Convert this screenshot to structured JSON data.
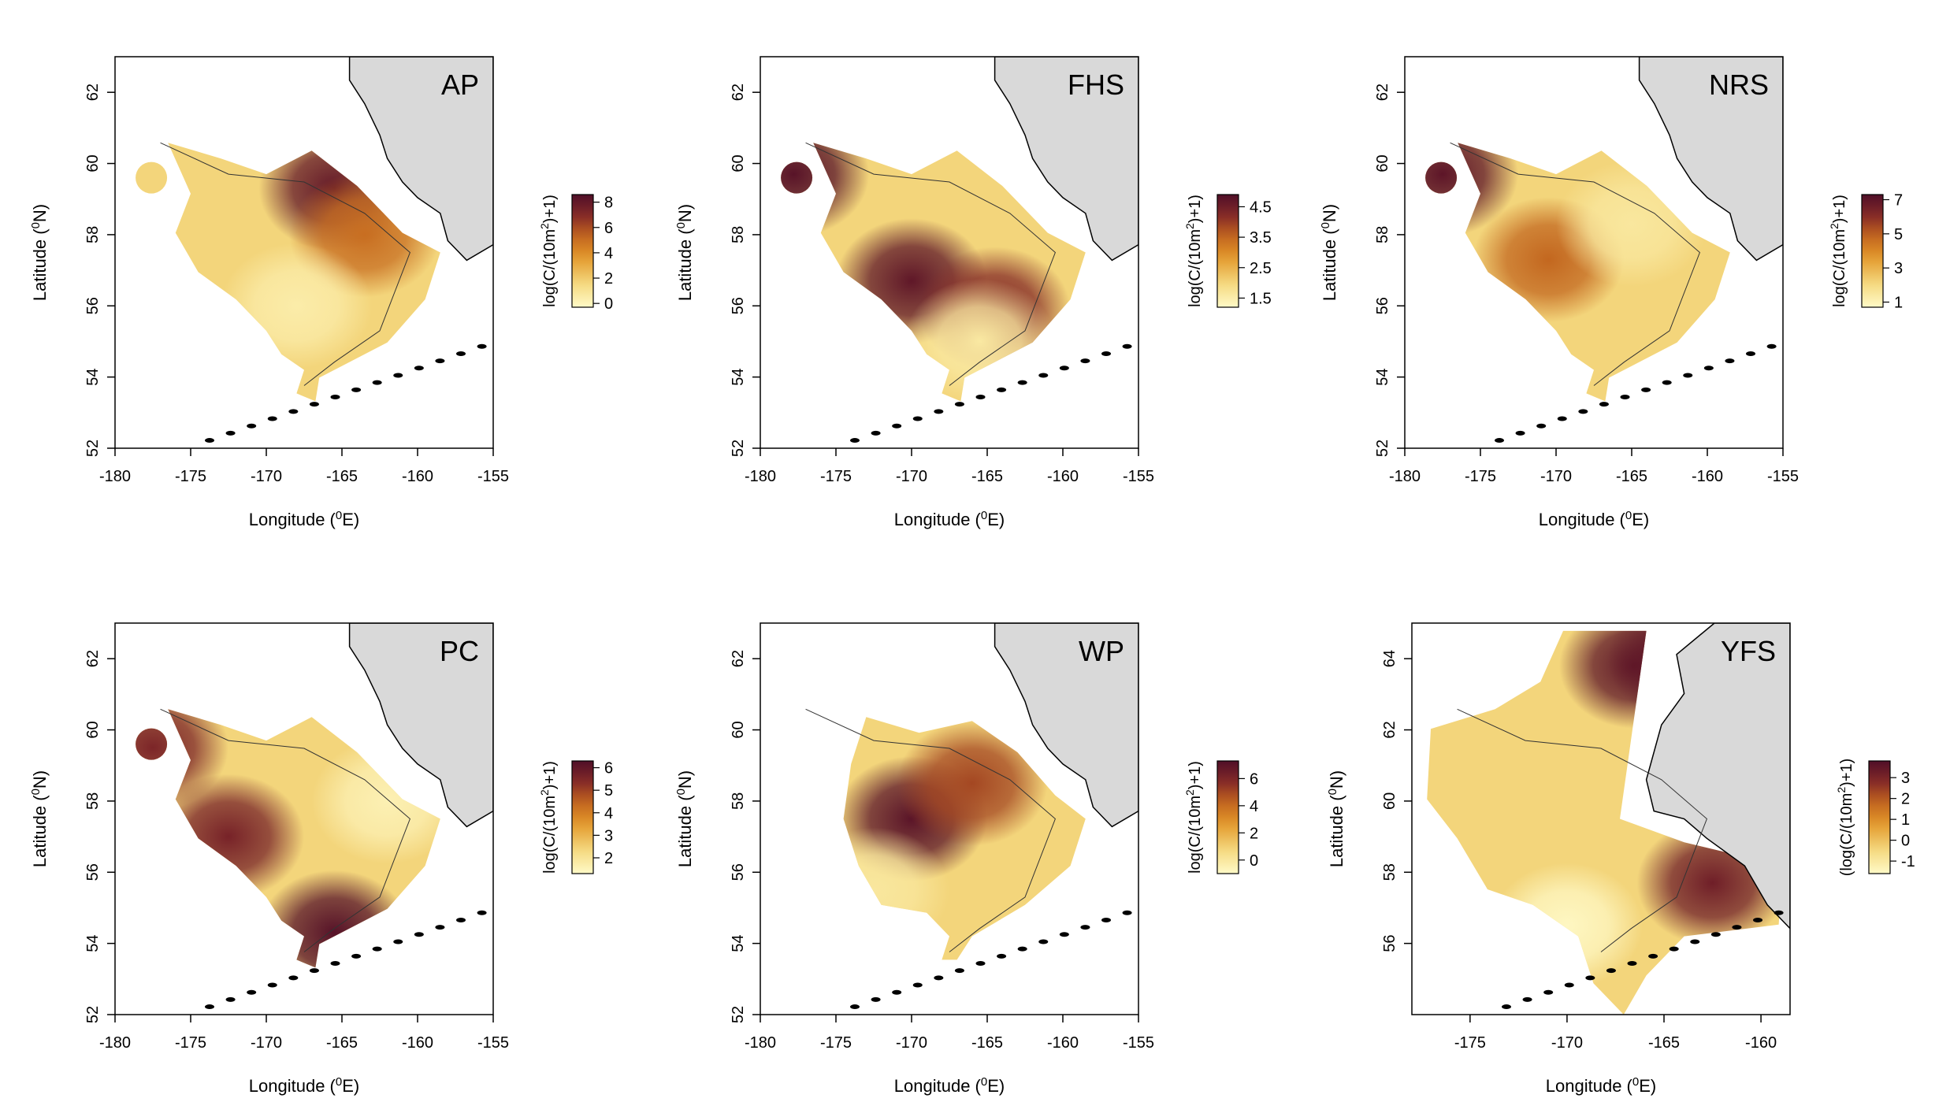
{
  "figure": {
    "panels": [
      {
        "id": "AP",
        "label": "AP",
        "xlabel": "Longitude (",
        "xlabel_sup": "0",
        "xlabel_end": "E)",
        "ylabel": "Latitude (",
        "ylabel_sup": "0",
        "ylabel_end": "N)",
        "x_ticks": [
          "-180",
          "-175",
          "-170",
          "-165",
          "-160",
          "-155"
        ],
        "y_ticks": [
          "52",
          "54",
          "56",
          "58",
          "60",
          "62"
        ],
        "legend_title": "log(C/(10m",
        "legend_title_sup": "2",
        "legend_title_end": ")+1)",
        "legend_ticks": [
          "0",
          "2",
          "4",
          "6",
          "8"
        ]
      },
      {
        "id": "FHS",
        "label": "FHS",
        "xlabel": "Longitude (",
        "xlabel_sup": "0",
        "xlabel_end": "E)",
        "ylabel": "Latitude (",
        "ylabel_sup": "0",
        "ylabel_end": "N)",
        "x_ticks": [
          "-180",
          "-175",
          "-170",
          "-165",
          "-160",
          "-155"
        ],
        "y_ticks": [
          "52",
          "54",
          "56",
          "58",
          "60",
          "62"
        ],
        "legend_title": "log(C/(10m",
        "legend_title_sup": "2",
        "legend_title_end": ")+1)",
        "legend_ticks": [
          "1.5",
          "2.5",
          "3.5",
          "4.5"
        ]
      },
      {
        "id": "NRS",
        "label": "NRS",
        "xlabel": "Longitude (",
        "xlabel_sup": "0",
        "xlabel_end": "E)",
        "ylabel": "Latitude (",
        "ylabel_sup": "0",
        "ylabel_end": "N)",
        "x_ticks": [
          "-180",
          "-175",
          "-170",
          "-165",
          "-160",
          "-155"
        ],
        "y_ticks": [
          "52",
          "54",
          "56",
          "58",
          "60",
          "62"
        ],
        "legend_title": "log(C/(10m",
        "legend_title_sup": "2",
        "legend_title_end": ")+1)",
        "legend_ticks": [
          "1",
          "3",
          "5",
          "7"
        ]
      },
      {
        "id": "PC",
        "label": "PC",
        "xlabel": "Longitude (",
        "xlabel_sup": "0",
        "xlabel_end": "E)",
        "ylabel": "Latitude (",
        "ylabel_sup": "0",
        "ylabel_end": "N)",
        "x_ticks": [
          "-180",
          "-175",
          "-170",
          "-165",
          "-160",
          "-155"
        ],
        "y_ticks": [
          "52",
          "54",
          "56",
          "58",
          "60",
          "62"
        ],
        "legend_title": "log(C/(10m",
        "legend_title_sup": "2",
        "legend_title_end": ")+1)",
        "legend_ticks": [
          "2",
          "3",
          "4",
          "5",
          "6"
        ]
      },
      {
        "id": "WP",
        "label": "WP",
        "xlabel": "Longitude (",
        "xlabel_sup": "0",
        "xlabel_end": "E)",
        "ylabel": "Latitude (",
        "ylabel_sup": "0",
        "ylabel_end": "N)",
        "x_ticks": [
          "-180",
          "-175",
          "-170",
          "-165",
          "-160",
          "-155"
        ],
        "y_ticks": [
          "52",
          "54",
          "56",
          "58",
          "60",
          "62"
        ],
        "legend_title": "log(C/(10m",
        "legend_title_sup": "2",
        "legend_title_end": ")+1)",
        "legend_ticks": [
          "0",
          "2",
          "4",
          "6"
        ]
      },
      {
        "id": "YFS",
        "label": "YFS",
        "xlabel": "Longitude (",
        "xlabel_sup": "0",
        "xlabel_end": "E)",
        "ylabel": "Latitude (",
        "ylabel_sup": "0",
        "ylabel_end": "N)",
        "x_ticks": [
          "-175",
          "-170",
          "-165",
          "-160"
        ],
        "y_ticks": [
          "56",
          "58",
          "60",
          "62",
          "64"
        ],
        "legend_title": "(log(C/(10m",
        "legend_title_sup": "2",
        "legend_title_end": ")+1)",
        "legend_ticks": [
          "-1",
          "0",
          "1",
          "2",
          "3"
        ]
      }
    ]
  },
  "chart_data": [
    {
      "type": "heatmap",
      "title": "AP",
      "xlabel": "Longitude (0E)",
      "ylabel": "Latitude (0N)",
      "xlim": [
        -180,
        -155
      ],
      "ylim": [
        52,
        63
      ],
      "colorbar": {
        "label": "log(C/(10m2)+1)",
        "range": [
          -0.3,
          8.6
        ],
        "ticks": [
          0,
          2,
          4,
          6,
          8
        ]
      },
      "hotspots": [
        {
          "lon": -165.5,
          "lat": 59.3,
          "value": 8
        },
        {
          "lon": -163.5,
          "lat": 58.0,
          "value": 5
        },
        {
          "lon": -168.0,
          "lat": 56.0,
          "value": 0.5
        }
      ]
    },
    {
      "type": "heatmap",
      "title": "FHS",
      "xlabel": "Longitude (0E)",
      "ylabel": "Latitude (0N)",
      "xlim": [
        -180,
        -155
      ],
      "ylim": [
        52,
        63
      ],
      "colorbar": {
        "label": "log(C/(10m2)+1)",
        "range": [
          1.2,
          4.9
        ],
        "ticks": [
          1.5,
          2.5,
          3.5,
          4.5
        ]
      },
      "hotspots": [
        {
          "lon": -177.8,
          "lat": 59.7,
          "value": 4.8
        },
        {
          "lon": -170.0,
          "lat": 56.7,
          "value": 4.7
        },
        {
          "lon": -164.5,
          "lat": 55.9,
          "value": 4.2
        },
        {
          "lon": -165.5,
          "lat": 55.0,
          "value": 1.6
        }
      ]
    },
    {
      "type": "heatmap",
      "title": "NRS",
      "xlabel": "Longitude (0E)",
      "ylabel": "Latitude (0N)",
      "xlim": [
        -180,
        -155
      ],
      "ylim": [
        52,
        63
      ],
      "colorbar": {
        "label": "log(C/(10m2)+1)",
        "range": [
          0.7,
          7.3
        ],
        "ticks": [
          1,
          3,
          5,
          7
        ]
      },
      "hotspots": [
        {
          "lon": -177.5,
          "lat": 59.7,
          "value": 7
        },
        {
          "lon": -170.5,
          "lat": 57.3,
          "value": 4.8
        },
        {
          "lon": -165.0,
          "lat": 58.3,
          "value": 1.5
        }
      ]
    },
    {
      "type": "heatmap",
      "title": "PC",
      "xlabel": "Longitude (0E)",
      "ylabel": "Latitude (0N)",
      "xlim": [
        -180,
        -155
      ],
      "ylim": [
        52,
        63
      ],
      "colorbar": {
        "label": "log(C/(10m2)+1)",
        "range": [
          1.3,
          6.3
        ],
        "ticks": [
          2,
          3,
          4,
          5,
          6
        ]
      },
      "hotspots": [
        {
          "lon": -177.5,
          "lat": 59.5,
          "value": 5.5
        },
        {
          "lon": -172.5,
          "lat": 57.0,
          "value": 5.6
        },
        {
          "lon": -165.5,
          "lat": 54.3,
          "value": 6.2
        },
        {
          "lon": -162.0,
          "lat": 58.0,
          "value": 1.6
        }
      ]
    },
    {
      "type": "heatmap",
      "title": "WP",
      "xlabel": "Longitude (0E)",
      "ylabel": "Latitude (0N)",
      "xlim": [
        -180,
        -155
      ],
      "ylim": [
        52,
        63
      ],
      "colorbar": {
        "label": "log(C/(10m2)+1)",
        "range": [
          -1,
          7.3
        ],
        "ticks": [
          0,
          2,
          4,
          6
        ]
      },
      "hotspots": [
        {
          "lon": -170.0,
          "lat": 57.5,
          "value": 7
        },
        {
          "lon": -166.0,
          "lat": 58.5,
          "value": 5
        },
        {
          "lon": -172.5,
          "lat": 55.5,
          "value": 0
        }
      ]
    },
    {
      "type": "heatmap",
      "title": "YFS",
      "xlabel": "Longitude (0E)",
      "ylabel": "Latitude (0N)",
      "xlim": [
        -178,
        -158.5
      ],
      "ylim": [
        54,
        65
      ],
      "colorbar": {
        "label": "(log(C/(10m2)+1)",
        "range": [
          -1.6,
          3.8
        ],
        "ticks": [
          -1,
          0,
          1,
          2,
          3
        ]
      },
      "hotspots": [
        {
          "lon": -166.5,
          "lat": 63.8,
          "value": 3.5
        },
        {
          "lon": -164.0,
          "lat": 64.0,
          "value": 3.5
        },
        {
          "lon": -162.5,
          "lat": 57.7,
          "value": 3.2
        },
        {
          "lon": -170.0,
          "lat": 56.5,
          "value": -1.5
        }
      ]
    }
  ]
}
